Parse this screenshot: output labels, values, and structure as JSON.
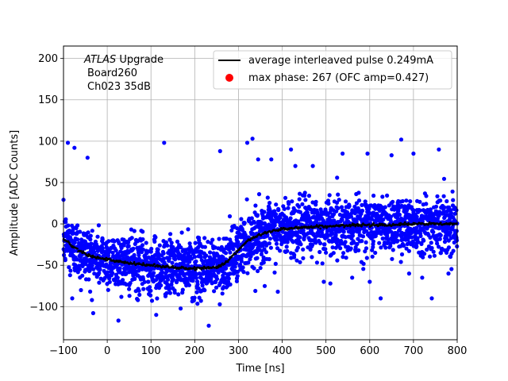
{
  "chart_data": {
    "type": "scatter",
    "title": "",
    "xlabel": "Time [ns]",
    "ylabel": "Amplitude [ADC Counts]",
    "xlim": [
      -100,
      800
    ],
    "ylim": [
      -140,
      215
    ],
    "xticks": [
      -100,
      0,
      100,
      200,
      300,
      400,
      500,
      600,
      700,
      800
    ],
    "yticks": [
      -100,
      -50,
      0,
      50,
      100,
      150,
      200
    ],
    "grid": true,
    "annotation": {
      "italic": "ATLAS",
      "line1_rest": " Upgrade",
      "line2": "Board260",
      "line3": "Ch023 35dB"
    },
    "legend": {
      "position": "top-right",
      "entries": [
        {
          "label": "average interleaved pulse 0.249mA",
          "kind": "line",
          "color": "#000000"
        },
        {
          "label": "max phase: 267 (OFC amp=0.427)",
          "kind": "marker",
          "color": "#ff0000"
        }
      ]
    },
    "series": [
      {
        "name": "samples",
        "kind": "scatter",
        "color": "#0000ff",
        "noise_sigma": 17,
        "x_step_ns": 0.35,
        "outliers": [
          {
            "x": -90,
            "y": 98
          },
          {
            "x": -75,
            "y": 92
          },
          {
            "x": -60,
            "y": -80
          },
          {
            "x": -45,
            "y": 80
          },
          {
            "x": -35,
            "y": -92
          },
          {
            "x": -80,
            "y": -90
          },
          {
            "x": -85,
            "y": -62
          },
          {
            "x": 10,
            "y": -62
          },
          {
            "x": 40,
            "y": -72
          },
          {
            "x": 70,
            "y": -92
          },
          {
            "x": 112,
            "y": -110
          },
          {
            "x": 130,
            "y": 98
          },
          {
            "x": 180,
            "y": -66
          },
          {
            "x": 232,
            "y": -123
          },
          {
            "x": 258,
            "y": 88
          },
          {
            "x": 270,
            "y": -70
          },
          {
            "x": 320,
            "y": 98
          },
          {
            "x": 332,
            "y": 103
          },
          {
            "x": 345,
            "y": 78
          },
          {
            "x": 360,
            "y": -75
          },
          {
            "x": 375,
            "y": 78
          },
          {
            "x": 390,
            "y": -82
          },
          {
            "x": 420,
            "y": 90
          },
          {
            "x": 430,
            "y": 70
          },
          {
            "x": 470,
            "y": 70
          },
          {
            "x": 495,
            "y": -70
          },
          {
            "x": 510,
            "y": -72
          },
          {
            "x": 538,
            "y": 85
          },
          {
            "x": 560,
            "y": -65
          },
          {
            "x": 595,
            "y": 85
          },
          {
            "x": 600,
            "y": -70
          },
          {
            "x": 625,
            "y": -90
          },
          {
            "x": 650,
            "y": 83
          },
          {
            "x": 672,
            "y": 102
          },
          {
            "x": 690,
            "y": -60
          },
          {
            "x": 700,
            "y": 85
          },
          {
            "x": 720,
            "y": -65
          },
          {
            "x": 742,
            "y": -90
          },
          {
            "x": 758,
            "y": 90
          },
          {
            "x": 780,
            "y": -60
          }
        ]
      },
      {
        "name": "average interleaved pulse 0.249mA",
        "kind": "line",
        "color": "#000000",
        "x": [
          -100,
          -80,
          -60,
          -40,
          -20,
          0,
          20,
          40,
          60,
          80,
          100,
          120,
          140,
          160,
          180,
          200,
          220,
          240,
          250,
          260,
          270,
          280,
          290,
          300,
          310,
          320,
          340,
          360,
          380,
          400,
          450,
          500,
          550,
          600,
          650,
          700,
          750,
          800
        ],
        "y": [
          -18,
          -27,
          -33,
          -38,
          -41,
          -43,
          -45,
          -47,
          -48,
          -49,
          -50,
          -51,
          -52,
          -53,
          -54,
          -54,
          -53,
          -53,
          -52,
          -50,
          -47,
          -42,
          -37,
          -32,
          -26,
          -21,
          -15,
          -11,
          -8,
          -6,
          -4,
          -3,
          -2,
          -1,
          -1,
          0,
          0,
          0
        ]
      },
      {
        "name": "max phase: 267 (OFC amp=0.427)",
        "kind": "marker",
        "color": "#ff0000",
        "x": [],
        "y": []
      }
    ]
  }
}
